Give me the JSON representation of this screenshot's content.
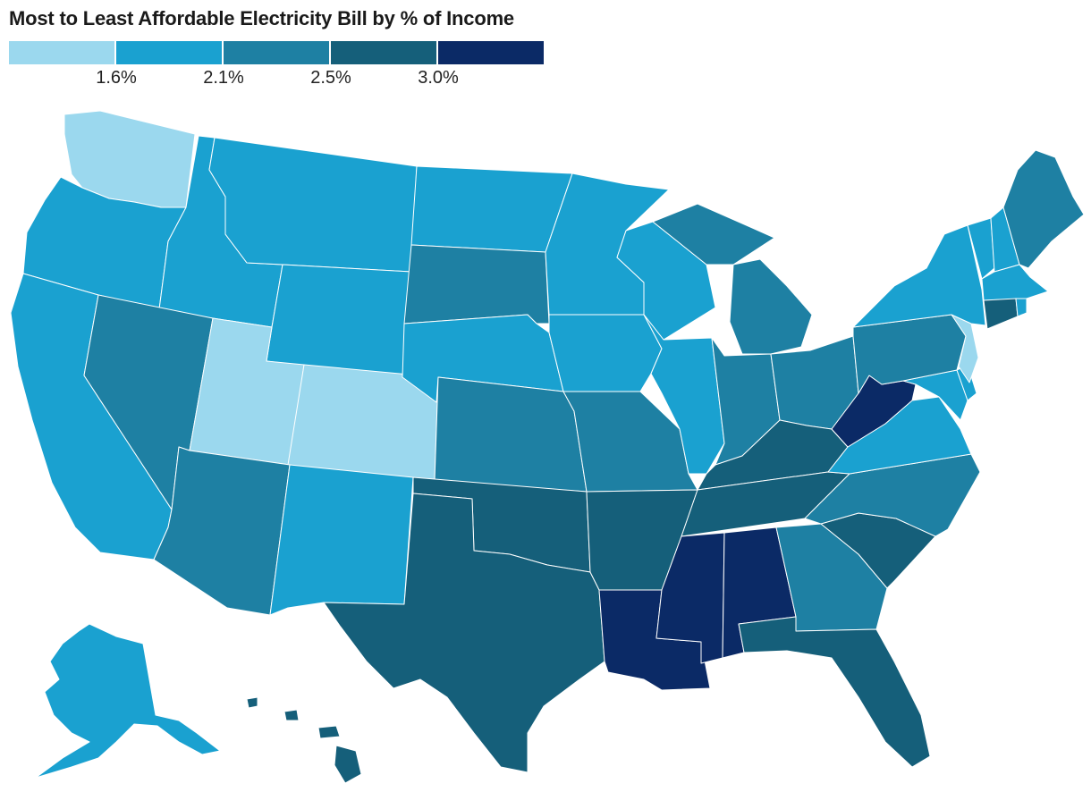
{
  "title": "Most to Least Affordable Electricity Bill by % of Income",
  "legend": {
    "bins": [
      {
        "color": "#9bd8ee"
      },
      {
        "color": "#1aa1d0"
      },
      {
        "color": "#1e80a3"
      },
      {
        "color": "#155f7a"
      },
      {
        "color": "#0b2a66"
      }
    ],
    "ticks": [
      "1.6%",
      "2.1%",
      "2.5%",
      "3.0%"
    ]
  },
  "colors": {
    "c1": "#9bd8ee",
    "c2": "#1aa1d0",
    "c3": "#1e80a3",
    "c4": "#155f7a",
    "c5": "#0b2a66"
  },
  "states": [
    {
      "name": "Washington",
      "bin": 1
    },
    {
      "name": "Oregon",
      "bin": 2
    },
    {
      "name": "California",
      "bin": 2
    },
    {
      "name": "Idaho",
      "bin": 2
    },
    {
      "name": "Montana",
      "bin": 2
    },
    {
      "name": "Wyoming",
      "bin": 2
    },
    {
      "name": "Nevada",
      "bin": 3
    },
    {
      "name": "Utah",
      "bin": 1
    },
    {
      "name": "Colorado",
      "bin": 1
    },
    {
      "name": "Arizona",
      "bin": 3
    },
    {
      "name": "New Mexico",
      "bin": 2
    },
    {
      "name": "North Dakota",
      "bin": 2
    },
    {
      "name": "South Dakota",
      "bin": 3
    },
    {
      "name": "Nebraska",
      "bin": 2
    },
    {
      "name": "Kansas",
      "bin": 3
    },
    {
      "name": "Oklahoma",
      "bin": 4
    },
    {
      "name": "Texas",
      "bin": 4
    },
    {
      "name": "Minnesota",
      "bin": 2
    },
    {
      "name": "Iowa",
      "bin": 2
    },
    {
      "name": "Missouri",
      "bin": 3
    },
    {
      "name": "Arkansas",
      "bin": 4
    },
    {
      "name": "Louisiana",
      "bin": 5
    },
    {
      "name": "Wisconsin",
      "bin": 2
    },
    {
      "name": "Illinois",
      "bin": 2
    },
    {
      "name": "Michigan",
      "bin": 3
    },
    {
      "name": "Indiana",
      "bin": 3
    },
    {
      "name": "Ohio",
      "bin": 3
    },
    {
      "name": "Kentucky",
      "bin": 4
    },
    {
      "name": "Tennessee",
      "bin": 4
    },
    {
      "name": "Mississippi",
      "bin": 5
    },
    {
      "name": "Alabama",
      "bin": 5
    },
    {
      "name": "Georgia",
      "bin": 3
    },
    {
      "name": "Florida",
      "bin": 4
    },
    {
      "name": "South Carolina",
      "bin": 4
    },
    {
      "name": "North Carolina",
      "bin": 3
    },
    {
      "name": "Virginia",
      "bin": 2
    },
    {
      "name": "West Virginia",
      "bin": 5
    },
    {
      "name": "Pennsylvania",
      "bin": 3
    },
    {
      "name": "New York",
      "bin": 2
    },
    {
      "name": "New Jersey",
      "bin": 1
    },
    {
      "name": "Delaware",
      "bin": 2
    },
    {
      "name": "Maryland",
      "bin": 2
    },
    {
      "name": "Connecticut",
      "bin": 4
    },
    {
      "name": "Rhode Island",
      "bin": 2
    },
    {
      "name": "Massachusetts",
      "bin": 2
    },
    {
      "name": "Vermont",
      "bin": 2
    },
    {
      "name": "New Hampshire",
      "bin": 2
    },
    {
      "name": "Maine",
      "bin": 3
    },
    {
      "name": "Alaska",
      "bin": 2
    },
    {
      "name": "Hawaii",
      "bin": 4
    }
  ]
}
